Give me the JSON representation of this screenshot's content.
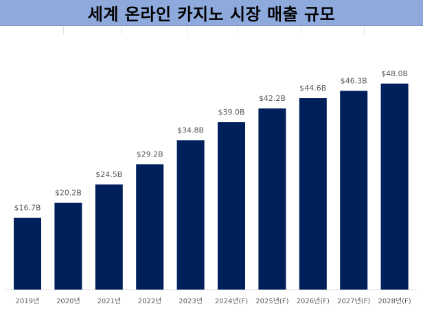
{
  "title": "세계 온라인 카지노 시장 매출 규모",
  "colors": {
    "title_background": "#8ea9db",
    "bar": "#00205b",
    "value_label": "#595959",
    "tick_label": "#595959",
    "axis": "#d9d9d9"
  },
  "chart_data": {
    "type": "bar",
    "title": "세계 온라인 카지노 시장 매출 규모",
    "xlabel": "",
    "ylabel": "",
    "categories": [
      "2019년",
      "2020년",
      "2021년",
      "2022년",
      "2023년",
      "2024년(F)",
      "2025년(F)",
      "2026년(F)",
      "2027년(F)",
      "2028년(F)"
    ],
    "values": [
      16.7,
      20.2,
      24.5,
      29.2,
      34.8,
      39.0,
      42.2,
      44.6,
      46.3,
      48.0
    ],
    "value_labels": [
      "$16.7B",
      "$20.2B",
      "$24.5B",
      "$29.2B",
      "$34.8B",
      "$39.0B",
      "$42.2B",
      "$44.6B",
      "$46.3B",
      "$48.0B"
    ],
    "ylim": [
      0,
      55
    ],
    "grid": false,
    "legend": "none"
  }
}
